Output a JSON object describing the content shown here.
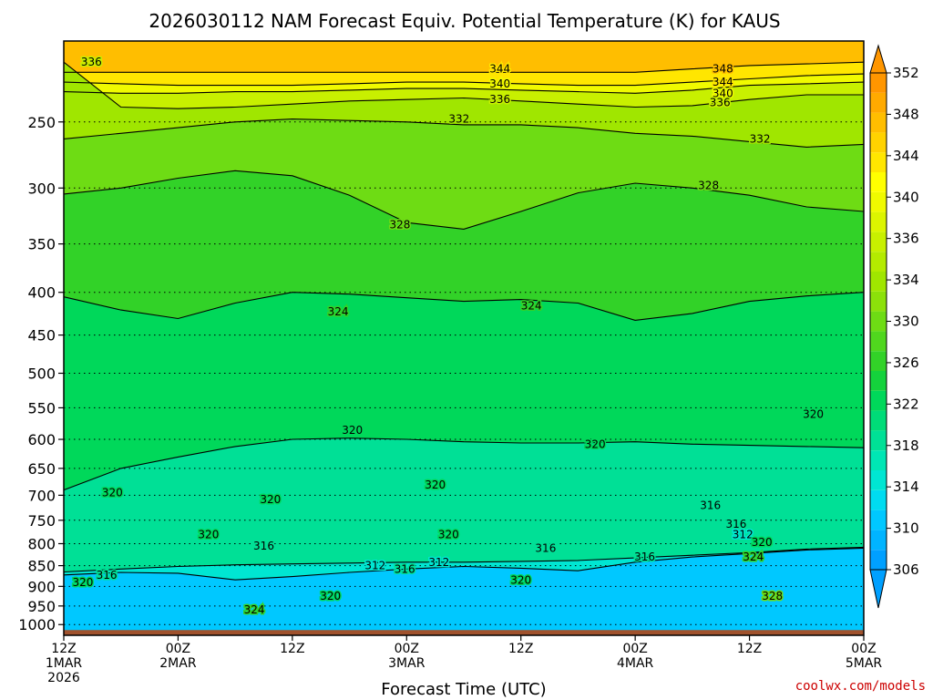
{
  "chart_data": {
    "type": "heatmap",
    "title": "2026030112 NAM Forecast Equiv. Potential Temperature (K) for KAUS",
    "xlabel": "Forecast Time (UTC)",
    "ylabel": "",
    "credit": "coolwx.com/models",
    "x_axis": {
      "range_hours": [
        0,
        84
      ],
      "ticks": [
        {
          "hour": 0,
          "line1": "12Z",
          "line2": "1MAR",
          "line3": "2026"
        },
        {
          "hour": 12,
          "line1": "00Z",
          "line2": "2MAR",
          "line3": ""
        },
        {
          "hour": 24,
          "line1": "12Z",
          "line2": "",
          "line3": ""
        },
        {
          "hour": 36,
          "line1": "00Z",
          "line2": "3MAR",
          "line3": ""
        },
        {
          "hour": 48,
          "line1": "12Z",
          "line2": "",
          "line3": ""
        },
        {
          "hour": 60,
          "line1": "00Z",
          "line2": "4MAR",
          "line3": ""
        },
        {
          "hour": 72,
          "line1": "12Z",
          "line2": "",
          "line3": ""
        },
        {
          "hour": 84,
          "line1": "00Z",
          "line2": "5MAR",
          "line3": ""
        }
      ]
    },
    "y_axis": {
      "scale": "log",
      "inverted": true,
      "range_hpa": [
        1030,
        200
      ],
      "ticks": [
        "1000",
        "950",
        "900",
        "850",
        "800",
        "750",
        "700",
        "650",
        "600",
        "550",
        "500",
        "450",
        "400",
        "350",
        "300",
        "250"
      ]
    },
    "ground_below_hpa": 1000,
    "colorbar": {
      "levels": [
        304,
        306,
        308,
        310,
        312,
        314,
        316,
        318,
        320,
        322,
        324,
        326,
        328,
        330,
        332,
        334,
        336,
        338,
        340,
        342,
        344,
        346,
        348,
        350,
        352,
        354
      ],
      "colors": [
        "#00a0ff",
        "#00b4ff",
        "#00c8ff",
        "#00dcf0",
        "#00e6d2",
        "#00e6b4",
        "#00e096",
        "#00dc78",
        "#00d85a",
        "#14d23c",
        "#32d228",
        "#50d71e",
        "#6edc14",
        "#8ce10a",
        "#a0e600",
        "#b4eb00",
        "#c8f000",
        "#dcf500",
        "#f0fa00",
        "#ffff00",
        "#ffe600",
        "#ffd200",
        "#ffbe00",
        "#ffaa00",
        "#ff9600"
      ],
      "labels": [
        306,
        310,
        314,
        318,
        322,
        326,
        330,
        334,
        336,
        340,
        344,
        348,
        352
      ]
    },
    "series": [
      {
        "level": 348,
        "p_hpa": [
          218,
          218,
          218,
          218,
          218,
          218,
          218,
          218,
          218,
          218,
          218,
          216,
          214,
          213,
          212
        ],
        "hours": [
          0,
          6,
          12,
          18,
          24,
          30,
          36,
          42,
          48,
          54,
          60,
          66,
          72,
          78,
          84
        ]
      },
      {
        "level": 344,
        "p_hpa": [
          224,
          225,
          226,
          226,
          226,
          225,
          224,
          224,
          225,
          226,
          226,
          224,
          222,
          220,
          219
        ],
        "hours": [
          0,
          6,
          12,
          18,
          24,
          30,
          36,
          42,
          48,
          54,
          60,
          66,
          72,
          78,
          84
        ]
      },
      {
        "level": 340,
        "p_hpa": [
          230,
          231,
          231,
          230,
          230,
          229,
          228,
          228,
          229,
          230,
          231,
          229,
          226,
          225,
          224
        ],
        "hours": [
          0,
          6,
          12,
          18,
          24,
          30,
          36,
          42,
          48,
          54,
          60,
          66,
          72,
          78,
          84
        ]
      },
      {
        "level": 336,
        "p_hpa": [
          212,
          240,
          241,
          240,
          238,
          236,
          235,
          234,
          236,
          238,
          240,
          239,
          235,
          232,
          232
        ],
        "hours": [
          0,
          6,
          12,
          18,
          24,
          30,
          36,
          42,
          48,
          54,
          60,
          66,
          72,
          78,
          84
        ]
      },
      {
        "level": 332,
        "p_hpa": [
          262,
          258,
          254,
          250,
          248,
          249,
          250,
          252,
          252,
          254,
          258,
          260,
          264,
          268,
          266
        ],
        "hours": [
          0,
          6,
          12,
          18,
          24,
          30,
          36,
          42,
          48,
          54,
          60,
          66,
          72,
          78,
          84
        ]
      },
      {
        "level": 328,
        "p_hpa": [
          305,
          300,
          292,
          286,
          290,
          306,
          330,
          336,
          320,
          304,
          296,
          300,
          306,
          316,
          320
        ],
        "hours": [
          0,
          6,
          12,
          18,
          24,
          30,
          36,
          42,
          48,
          54,
          60,
          66,
          72,
          78,
          84
        ]
      },
      {
        "level": 324,
        "p_hpa": [
          405,
          420,
          430,
          412,
          400,
          402,
          406,
          410,
          408,
          412,
          432,
          424,
          410,
          404,
          400
        ],
        "hours": [
          0,
          6,
          12,
          18,
          24,
          30,
          36,
          42,
          48,
          54,
          60,
          66,
          72,
          78,
          84
        ]
      },
      {
        "level": 320,
        "p_hpa": [
          690,
          650,
          630,
          612,
          600,
          598,
          600,
          604,
          606,
          606,
          604,
          608,
          610,
          612,
          614
        ],
        "hours": [
          0,
          6,
          12,
          18,
          24,
          30,
          36,
          42,
          48,
          54,
          60,
          66,
          72,
          78,
          84
        ]
      },
      {
        "level": 316,
        "p_hpa": [
          865,
          858,
          852,
          848,
          846,
          844,
          842,
          842,
          840,
          838,
          832,
          826,
          820,
          812,
          808
        ],
        "hours": [
          0,
          6,
          12,
          18,
          24,
          30,
          36,
          42,
          48,
          54,
          60,
          66,
          72,
          78,
          84
        ]
      },
      {
        "level": 312,
        "p_hpa": [
          872,
          866,
          868,
          884,
          876,
          866,
          858,
          852,
          856,
          862,
          842,
          830,
          822,
          814,
          810
        ],
        "hours": [
          0,
          6,
          12,
          18,
          24,
          30,
          36,
          42,
          48,
          54,
          60,
          66,
          72,
          78,
          84
        ]
      }
    ],
    "contour_labels": [
      {
        "text": "336",
        "hour": 2.9,
        "p_hpa": 212
      },
      {
        "text": "344",
        "hour": 45.8,
        "p_hpa": 216
      },
      {
        "text": "340",
        "hour": 45.8,
        "p_hpa": 225
      },
      {
        "text": "336",
        "hour": 45.8,
        "p_hpa": 235
      },
      {
        "text": "348",
        "hour": 69.2,
        "p_hpa": 216
      },
      {
        "text": "344",
        "hour": 69.2,
        "p_hpa": 224
      },
      {
        "text": "340",
        "hour": 69.2,
        "p_hpa": 231
      },
      {
        "text": "336",
        "hour": 68.9,
        "p_hpa": 237
      },
      {
        "text": "332",
        "hour": 41.5,
        "p_hpa": 248
      },
      {
        "text": "332",
        "hour": 73.1,
        "p_hpa": 262
      },
      {
        "text": "328",
        "hour": 35.3,
        "p_hpa": 332
      },
      {
        "text": "328",
        "hour": 67.7,
        "p_hpa": 298
      },
      {
        "text": "324",
        "hour": 28.8,
        "p_hpa": 422
      },
      {
        "text": "324",
        "hour": 49.1,
        "p_hpa": 415
      },
      {
        "text": "320",
        "hour": 30.3,
        "p_hpa": 585
      },
      {
        "text": "320",
        "hour": 55.8,
        "p_hpa": 608
      },
      {
        "text": "320",
        "hour": 78.7,
        "p_hpa": 560
      },
      {
        "text": "320",
        "hour": 39.0,
        "p_hpa": 680
      },
      {
        "text": "320",
        "hour": 5.1,
        "p_hpa": 695
      },
      {
        "text": "320",
        "hour": 21.7,
        "p_hpa": 708
      },
      {
        "text": "320",
        "hour": 15.2,
        "p_hpa": 780
      },
      {
        "text": "320",
        "hour": 40.4,
        "p_hpa": 780
      },
      {
        "text": "316",
        "hour": 21.0,
        "p_hpa": 805
      },
      {
        "text": "316",
        "hour": 50.6,
        "p_hpa": 810
      },
      {
        "text": "316",
        "hour": 67.9,
        "p_hpa": 720
      },
      {
        "text": "316",
        "hour": 70.6,
        "p_hpa": 758
      },
      {
        "text": "312",
        "hour": 71.3,
        "p_hpa": 780
      },
      {
        "text": "320",
        "hour": 73.3,
        "p_hpa": 797
      },
      {
        "text": "324",
        "hour": 72.4,
        "p_hpa": 830
      },
      {
        "text": "312",
        "hour": 32.7,
        "p_hpa": 850
      },
      {
        "text": "312",
        "hour": 39.4,
        "p_hpa": 842
      },
      {
        "text": "316",
        "hour": 35.8,
        "p_hpa": 858
      },
      {
        "text": "316",
        "hour": 61.0,
        "p_hpa": 830
      },
      {
        "text": "316",
        "hour": 4.5,
        "p_hpa": 872
      },
      {
        "text": "320",
        "hour": 2.0,
        "p_hpa": 890
      },
      {
        "text": "320",
        "hour": 48.0,
        "p_hpa": 885
      },
      {
        "text": "320",
        "hour": 28.0,
        "p_hpa": 925
      },
      {
        "text": "324",
        "hour": 20.0,
        "p_hpa": 960
      },
      {
        "text": "328",
        "hour": 74.4,
        "p_hpa": 925
      }
    ]
  }
}
